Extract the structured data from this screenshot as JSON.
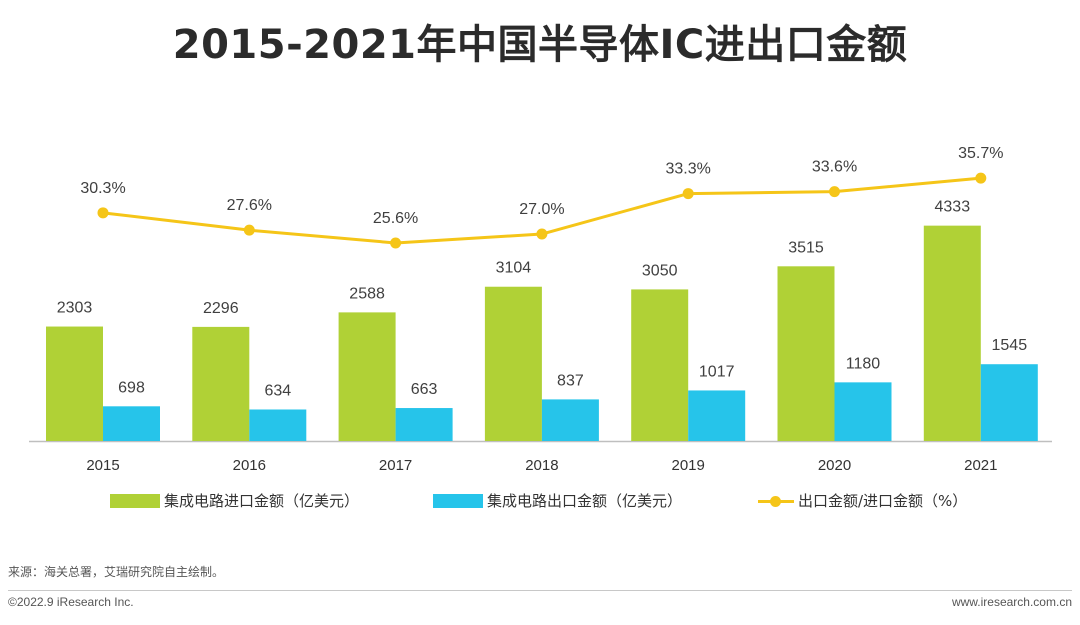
{
  "title": "2015-2021年中国半导体IC进出口金额",
  "colors": {
    "import": "#b0d136",
    "export": "#26c4ea",
    "ratio": "#f5c518",
    "axis": "#bfbfbf"
  },
  "legend": {
    "import_label": "集成电路进口金额（亿美元）",
    "export_label": "集成电路出口金额（亿美元）",
    "ratio_label": "出口金额/进口金额（%）"
  },
  "source": "来源：海关总署，艾瑞研究院自主绘制。",
  "footer": {
    "copyright": "©2022.9 iResearch Inc.",
    "website": "www.iresearch.com.cn"
  },
  "chart_data": {
    "type": "bar",
    "title": "2015-2021年中国半导体IC进出口金额",
    "categories": [
      "2015",
      "2016",
      "2017",
      "2018",
      "2019",
      "2020",
      "2021"
    ],
    "series": [
      {
        "name": "集成电路进口金额（亿美元）",
        "type": "bar",
        "axis": "left",
        "values": [
          2303,
          2296,
          2588,
          3104,
          3050,
          3515,
          4333
        ],
        "labels": [
          "2303",
          "2296",
          "2588",
          "3104",
          "3050",
          "3515",
          "4333"
        ]
      },
      {
        "name": "集成电路出口金额（亿美元）",
        "type": "bar",
        "axis": "left",
        "values": [
          698,
          634,
          663,
          837,
          1017,
          1180,
          1545
        ],
        "labels": [
          "698",
          "634",
          "663",
          "837",
          "1017",
          "1180",
          "1545"
        ]
      },
      {
        "name": "出口金额/进口金额（%）",
        "type": "line",
        "axis": "right",
        "values": [
          30.3,
          27.6,
          25.6,
          27.0,
          33.3,
          33.6,
          35.7
        ],
        "labels": [
          "30.3%",
          "27.6%",
          "25.6%",
          "27.0%",
          "33.3%",
          "33.6%",
          "35.7%"
        ]
      }
    ],
    "xlabel": "",
    "ylabel": "",
    "legend_position": "bottom",
    "grid": false
  }
}
